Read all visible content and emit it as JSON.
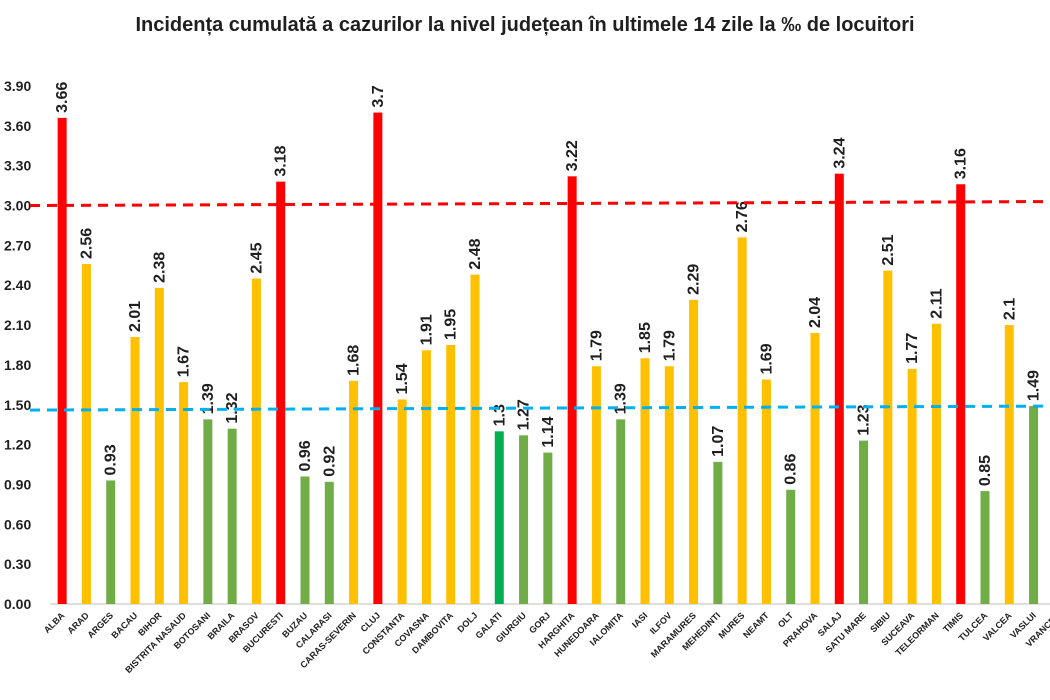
{
  "chart_data": {
    "type": "bar",
    "title": "Incidența cumulată a cazurilor la nivel județean în ultimele 14 zile la ‰ de locuitori",
    "xlabel": "",
    "ylabel": "",
    "ylim": [
      0,
      3.9
    ],
    "yticks": [
      "0.00",
      "0.30",
      "0.60",
      "0.90",
      "1.20",
      "1.50",
      "1.80",
      "2.10",
      "2.40",
      "2.70",
      "3.00",
      "3.30",
      "3.60",
      "3.90"
    ],
    "grid": false,
    "categories": [
      "ALBA",
      "ARAD",
      "ARGES",
      "BACAU",
      "BIHOR",
      "BISTRITA NASAUD",
      "BOTOSANI",
      "BRAILA",
      "BRASOV",
      "BUCURESTI",
      "BUZAU",
      "CALARASI",
      "CARAS-SEVERIN",
      "CLUJ",
      "CONSTANTA",
      "COVASNA",
      "DAMBOVITA",
      "DOLJ",
      "GALATI",
      "GIURGIU",
      "GORJ",
      "HARGHITA",
      "HUNEDOARA",
      "IALOMITA",
      "IASI",
      "ILFOV",
      "MARAMURES",
      "MEHEDINTI",
      "MURES",
      "NEAMT",
      "OLT",
      "PRAHOVA",
      "SALAJ",
      "SATU MARE",
      "SIBIU",
      "SUCEAVA",
      "TELEORMAN",
      "TIMIS",
      "TULCEA",
      "VALCEA",
      "VASLUI",
      "VRANCEA"
    ],
    "values": [
      3.66,
      2.56,
      0.93,
      2.01,
      2.38,
      1.67,
      1.39,
      1.32,
      2.45,
      3.18,
      0.96,
      0.92,
      1.68,
      3.7,
      1.54,
      1.91,
      1.95,
      2.48,
      1.3,
      1.27,
      1.14,
      3.22,
      1.79,
      1.39,
      1.85,
      1.79,
      2.29,
      1.07,
      2.76,
      1.69,
      0.86,
      2.04,
      3.24,
      1.23,
      2.51,
      1.77,
      2.11,
      3.16,
      0.85,
      2.1,
      1.49,
      null
    ],
    "value_labels": [
      "3.66",
      "2.56",
      "0.93",
      "2.01",
      "2.38",
      "1.67",
      "1.39",
      "1.32",
      "2.45",
      "3.18",
      "0.96",
      "0.92",
      "1.68",
      "3.7",
      "1.54",
      "1.91",
      "1.95",
      "2.48",
      "1.3",
      "1.27",
      "1.14",
      "3.22",
      "1.79",
      "1.39",
      "1.85",
      "1.79",
      "2.29",
      "1.07",
      "2.76",
      "1.69",
      "0.86",
      "2.04",
      "3.24",
      "1.23",
      "2.51",
      "1.77",
      "2.11",
      "3.16",
      "0.85",
      "2.1",
      "1.49",
      ""
    ],
    "bar_colors": [
      "#ff0000",
      "#ffc000",
      "#70ad47",
      "#ffc000",
      "#ffc000",
      "#ffc000",
      "#70ad47",
      "#70ad47",
      "#ffc000",
      "#ff0000",
      "#70ad47",
      "#70ad47",
      "#ffc000",
      "#ff0000",
      "#ffc000",
      "#ffc000",
      "#ffc000",
      "#ffc000",
      "#00b050",
      "#70ad47",
      "#70ad47",
      "#ff0000",
      "#ffc000",
      "#70ad47",
      "#ffc000",
      "#ffc000",
      "#ffc000",
      "#70ad47",
      "#ffc000",
      "#ffc000",
      "#70ad47",
      "#ffc000",
      "#ff0000",
      "#70ad47",
      "#ffc000",
      "#ffc000",
      "#ffc000",
      "#ff0000",
      "#70ad47",
      "#ffc000",
      "#70ad47",
      "#ffc000"
    ],
    "reference_lines": [
      {
        "color": "#ff0000",
        "y_start": 3.0,
        "y_end": 3.03
      },
      {
        "color": "#00b0f0",
        "y_start": 1.46,
        "y_end": 1.49
      }
    ]
  }
}
